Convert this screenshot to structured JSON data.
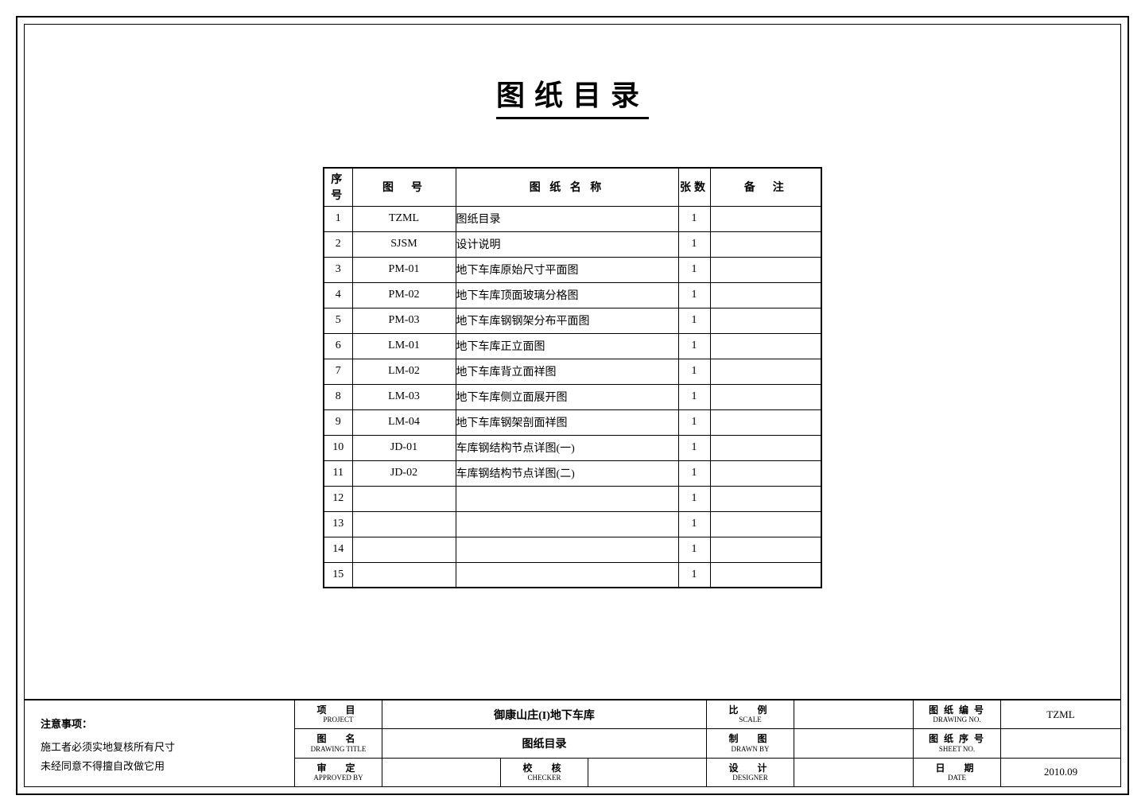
{
  "title": "图纸目录",
  "table": {
    "headers": {
      "seq": "序号",
      "code": "图　号",
      "name": "图 纸 名 称",
      "count": "张数",
      "remark": "备　注"
    },
    "rows": [
      {
        "seq": "1",
        "code": "TZML",
        "name": "图纸目录",
        "count": "1",
        "remark": ""
      },
      {
        "seq": "2",
        "code": "SJSM",
        "name": "设计说明",
        "count": "1",
        "remark": ""
      },
      {
        "seq": "3",
        "code": "PM-01",
        "name": "地下车库原始尺寸平面图",
        "count": "1",
        "remark": ""
      },
      {
        "seq": "4",
        "code": "PM-02",
        "name": "地下车库顶面玻璃分格图",
        "count": "1",
        "remark": ""
      },
      {
        "seq": "5",
        "code": "PM-03",
        "name": "地下车库钢钢架分布平面图",
        "count": "1",
        "remark": ""
      },
      {
        "seq": "6",
        "code": "LM-01",
        "name": "地下车库正立面图",
        "count": "1",
        "remark": ""
      },
      {
        "seq": "7",
        "code": "LM-02",
        "name": "地下车库背立面祥图",
        "count": "1",
        "remark": ""
      },
      {
        "seq": "8",
        "code": "LM-03",
        "name": "地下车库侧立面展开图",
        "count": "1",
        "remark": ""
      },
      {
        "seq": "9",
        "code": "LM-04",
        "name": "地下车库钢架剖面祥图",
        "count": "1",
        "remark": ""
      },
      {
        "seq": "10",
        "code": "JD-01",
        "name": "车库钢结构节点详图(一)",
        "count": "1",
        "remark": ""
      },
      {
        "seq": "11",
        "code": "JD-02",
        "name": "车库钢结构节点详图(二)",
        "count": "1",
        "remark": ""
      },
      {
        "seq": "12",
        "code": "",
        "name": "",
        "count": "1",
        "remark": ""
      },
      {
        "seq": "13",
        "code": "",
        "name": "",
        "count": "1",
        "remark": ""
      },
      {
        "seq": "14",
        "code": "",
        "name": "",
        "count": "1",
        "remark": ""
      },
      {
        "seq": "15",
        "code": "",
        "name": "",
        "count": "1",
        "remark": ""
      }
    ]
  },
  "titleblock": {
    "notes_title": "注意事项：",
    "notes_line1": "施工者必须实地复核所有尺寸",
    "notes_line2": "未经同意不得擅自改做它用",
    "labels": {
      "project_cn": "项　目",
      "project_en": "PROJECT",
      "drawing_title_cn": "图　名",
      "drawing_title_en": "DRAWING TITLE",
      "approved_cn": "审　定",
      "approved_en": "APPROVED BY",
      "checker_cn": "校　核",
      "checker_en": "CHECKER",
      "scale_cn": "比　例",
      "scale_en": "SCALE",
      "drawn_cn": "制　图",
      "drawn_en": "DRAWN BY",
      "designer_cn": "设　计",
      "designer_en": "DESIGNER",
      "drawing_no_cn": "图 纸 编 号",
      "drawing_no_en": "DRAWING NO.",
      "sheet_no_cn": "图 纸 序 号",
      "sheet_no_en": "SHEET NO.",
      "date_cn": "日　期",
      "date_en": "DATE"
    },
    "values": {
      "project": "御康山庄(I)地下车库",
      "drawing_title": "图纸目录",
      "approved": "",
      "checker": "",
      "scale": "",
      "drawn": "",
      "designer": "",
      "drawing_no": "TZML",
      "sheet_no": "",
      "date": "2010.09"
    }
  },
  "styling": {
    "page_bg": "#ffffff",
    "border_color": "#000000",
    "title_fontsize": 36,
    "table_fontsize": 14,
    "titleblock_fontsize": 12
  }
}
